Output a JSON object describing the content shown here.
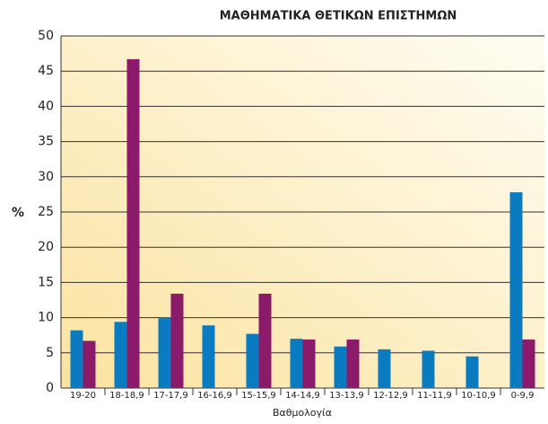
{
  "chart_data": {
    "type": "bar",
    "title": "ΜΑΘΗΜΑΤΙΚΑ ΘΕΤΙΚΩΝ ΕΠΙΣΤΗΜΩΝ",
    "x_label": "Βαθμολογία",
    "y_label": "%",
    "categories": [
      "19-20",
      "18-18,9",
      "17-17,9",
      "16-16,9",
      "15-15,9",
      "14-14,9",
      "13-13,9",
      "12-12,9",
      "11-11,9",
      "10-10,9",
      "0-9,9"
    ],
    "series": [
      {
        "color": "#0a7bc1",
        "values": [
          8.2,
          9.4,
          10,
          8.9,
          7.7,
          7,
          5.9,
          5.5,
          5.3,
          4.5,
          27.8
        ]
      },
      {
        "color": "#8b1a6b",
        "values": [
          6.7,
          46.7,
          13.4,
          null,
          13.4,
          6.9,
          6.9,
          null,
          null,
          null,
          6.9
        ]
      }
    ],
    "ylim": [
      0,
      50
    ],
    "yticks": [
      0,
      5,
      10,
      15,
      20,
      25,
      30,
      35,
      40,
      45,
      50
    ],
    "grid": true
  }
}
